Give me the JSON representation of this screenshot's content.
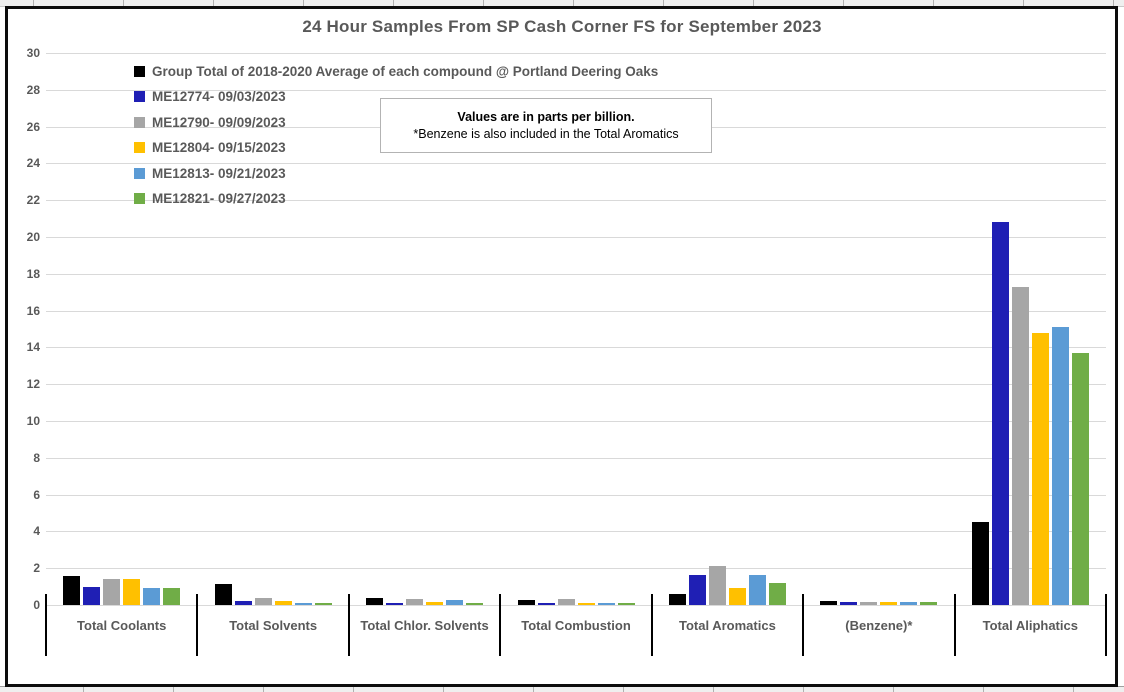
{
  "chart_data": {
    "type": "bar",
    "title": "24 Hour Samples From SP Cash Corner FS for September 2023",
    "unit": "parts per billion",
    "note_line1": "Values are in parts per billion.",
    "note_line2": "*Benzene is also included in the Total Aromatics",
    "categories": [
      "Total Coolants",
      "Total Solvents",
      "Total Chlor. Solvents",
      "Total Combustion",
      "Total Aromatics",
      "(Benzene)*",
      "Total Aliphatics"
    ],
    "series": [
      {
        "name": "Group Total of 2018-2020 Average of each compound @ Portland Deering Oaks",
        "color": "#000000",
        "values": [
          1.55,
          1.15,
          0.38,
          0.28,
          0.6,
          0.2,
          4.5
        ]
      },
      {
        "name": "ME12774- 09/03/2023",
        "color": "#1f1fb4",
        "values": [
          0.97,
          0.22,
          0.13,
          0.1,
          1.65,
          0.18,
          20.8
        ]
      },
      {
        "name": "ME12790- 09/09/2023",
        "color": "#a6a6a6",
        "values": [
          1.4,
          0.4,
          0.32,
          0.32,
          2.1,
          0.15,
          17.3
        ]
      },
      {
        "name": "ME12804- 09/15/2023",
        "color": "#ffc000",
        "values": [
          1.43,
          0.2,
          0.17,
          0.1,
          0.95,
          0.17,
          14.8
        ]
      },
      {
        "name": "ME12813- 09/21/2023",
        "color": "#5b9bd5",
        "values": [
          0.92,
          0.1,
          0.28,
          0.12,
          1.65,
          0.17,
          15.1
        ]
      },
      {
        "name": "ME12821- 09/27/2023",
        "color": "#70ad47",
        "values": [
          0.9,
          0.12,
          0.1,
          0.12,
          1.2,
          0.16,
          13.7
        ]
      }
    ],
    "ylim": [
      0,
      30
    ],
    "ytick_step": 2,
    "grid": true,
    "legend_position": "top-left-inside",
    "colors": {
      "text": "#595959",
      "gridline": "#d9d9d9",
      "chart_border": "#0c0c0c",
      "category_separator": "#000000"
    }
  }
}
